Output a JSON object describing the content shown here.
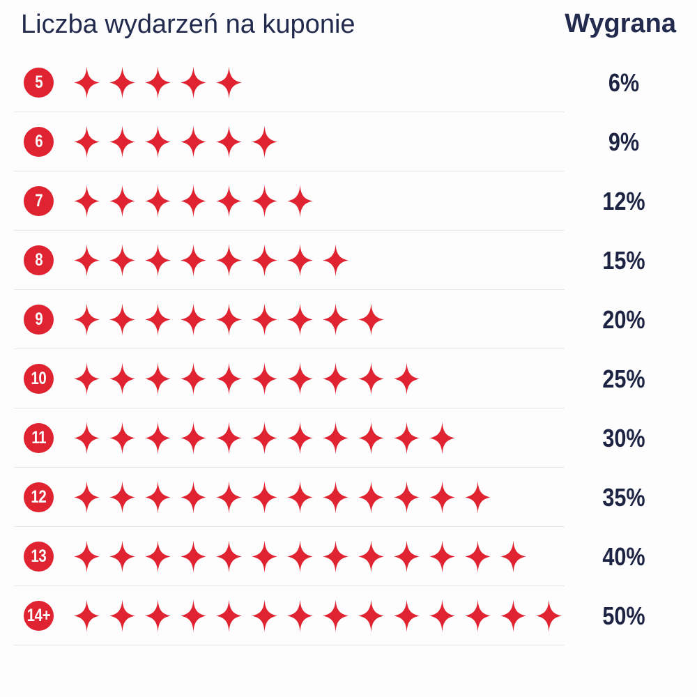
{
  "header": {
    "title": "Liczba wydarzeń na kuponie",
    "win_column": "Wygrana"
  },
  "colors": {
    "red": "#df2331",
    "navy": "#222a4e",
    "percent_navy": "#1d2342",
    "divider": "#e8e6e6",
    "badge_text": "#ffffff",
    "background": "#fdfdfd"
  },
  "icon": {
    "name": "sparkle-icon",
    "shape": "four-point-sparkle"
  },
  "rows": [
    {
      "label": "5",
      "stars": 5,
      "win": "6%"
    },
    {
      "label": "6",
      "stars": 6,
      "win": "9%"
    },
    {
      "label": "7",
      "stars": 7,
      "win": "12%"
    },
    {
      "label": "8",
      "stars": 8,
      "win": "15%"
    },
    {
      "label": "9",
      "stars": 9,
      "win": "20%"
    },
    {
      "label": "10",
      "stars": 10,
      "win": "25%"
    },
    {
      "label": "11",
      "stars": 11,
      "win": "30%"
    },
    {
      "label": "12",
      "stars": 12,
      "win": "35%"
    },
    {
      "label": "13",
      "stars": 13,
      "win": "40%"
    },
    {
      "label": "14+",
      "stars": 14,
      "win": "50%"
    }
  ],
  "chart_data": {
    "type": "table",
    "title": "Liczba wydarzeń na kuponie",
    "columns": [
      "Liczba wydarzeń na kuponie",
      "Wygrana"
    ],
    "categories": [
      "5",
      "6",
      "7",
      "8",
      "9",
      "10",
      "11",
      "12",
      "13",
      "14+"
    ],
    "series": [
      {
        "name": "Wygrana (%)",
        "values": [
          6,
          9,
          12,
          15,
          20,
          25,
          30,
          35,
          40,
          50
        ]
      },
      {
        "name": "Liczba gwiazdek (pictogram)",
        "values": [
          5,
          6,
          7,
          8,
          9,
          10,
          11,
          12,
          13,
          14
        ]
      }
    ],
    "legend": "none",
    "grid": "horizontal-row-dividers"
  }
}
